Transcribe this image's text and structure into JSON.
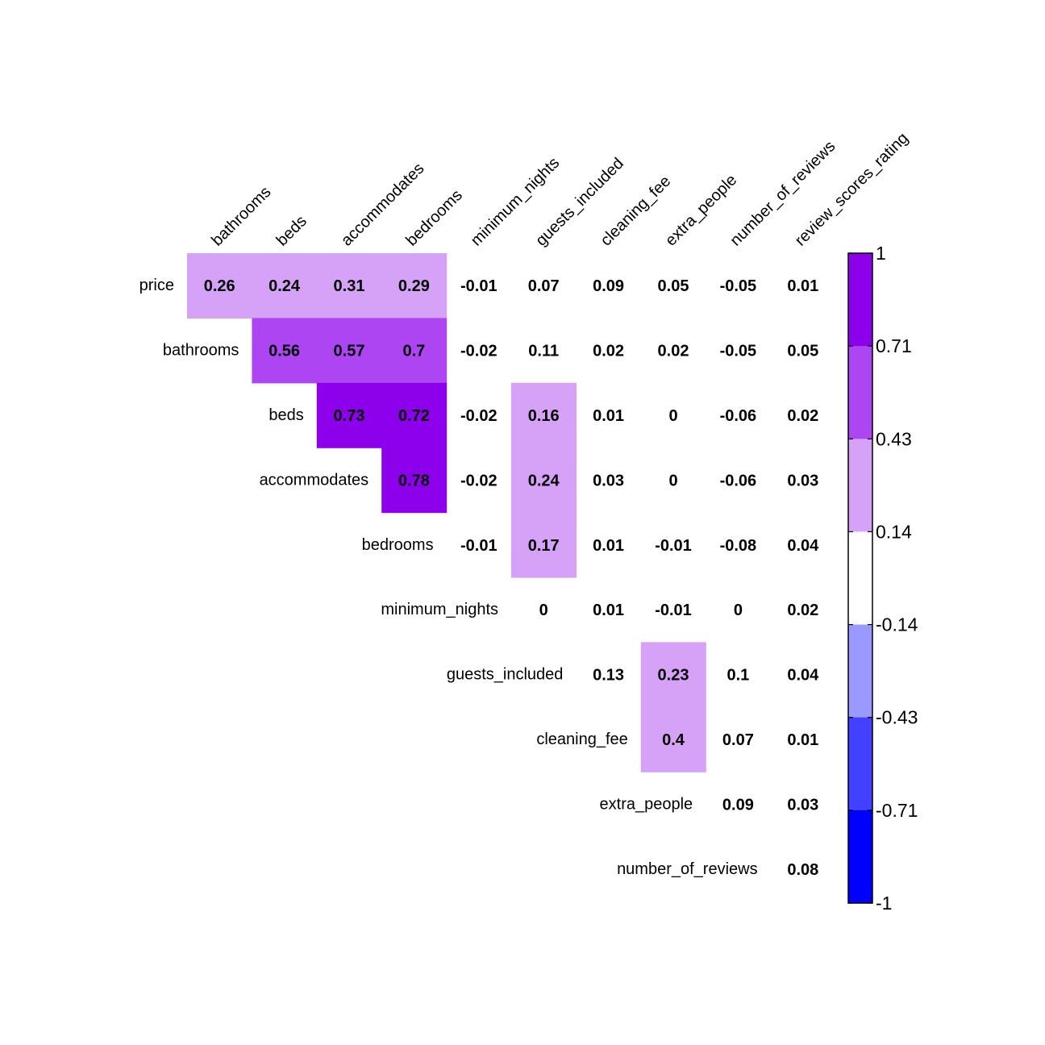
{
  "chart_data": {
    "type": "heatmap",
    "title": "",
    "row_labels": [
      "price",
      "bathrooms",
      "beds",
      "accommodates",
      "bedrooms",
      "minimum_nights",
      "guests_included",
      "cleaning_fee",
      "extra_people",
      "number_of_reviews"
    ],
    "column_labels": [
      "bathrooms",
      "beds",
      "accommodates",
      "bedrooms",
      "minimum_nights",
      "guests_included",
      "cleaning_fee",
      "extra_people",
      "number_of_reviews",
      "review_scores_rating"
    ],
    "layout": "upper-triangle",
    "values": [
      [
        0.26,
        0.24,
        0.31,
        0.29,
        -0.01,
        0.07,
        0.09,
        0.05,
        -0.05,
        0.01
      ],
      [
        0.56,
        0.57,
        0.7,
        -0.02,
        0.11,
        0.02,
        0.02,
        -0.05,
        0.05
      ],
      [
        0.73,
        0.72,
        -0.02,
        0.16,
        0.01,
        0,
        -0.06,
        0.02
      ],
      [
        0.78,
        -0.02,
        0.24,
        0.03,
        0,
        -0.06,
        0.03
      ],
      [
        -0.01,
        0.17,
        0.01,
        -0.01,
        -0.08,
        0.04
      ],
      [
        0,
        0.01,
        -0.01,
        0,
        0.02
      ],
      [
        0.13,
        0.23,
        0.1,
        0.04
      ],
      [
        0.4,
        0.07,
        0.01
      ],
      [
        0.09,
        0.03
      ],
      [
        0.08
      ]
    ],
    "colorbar": {
      "range": [
        -1,
        1
      ],
      "breaks": [
        1,
        0.71,
        0.43,
        0.14,
        -0.14,
        -0.43,
        -0.71,
        -1
      ],
      "break_labels": [
        "1",
        "0.71",
        "0.43",
        "0.14",
        "-0.14",
        "-0.43",
        "-0.71",
        "-1"
      ],
      "bin_colors": [
        "#8c00eb",
        "#ad46f2",
        "#d5a2f7",
        "#ffffff",
        "#9999ff",
        "#4141ff",
        "#0000ff"
      ]
    },
    "insignificant_cells": "blank background"
  }
}
